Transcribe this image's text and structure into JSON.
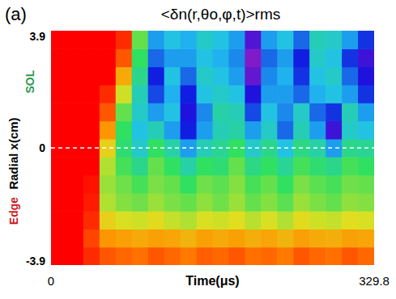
{
  "chart_data": {
    "type": "heatmap",
    "panel_label": "(a)",
    "title": "<δn(r,θo,φ,t)>rms",
    "x_label": "Time(μs)",
    "y_label": "Radial x(cm)",
    "xlim": [
      0,
      329.8
    ],
    "ylim": [
      -3.9,
      3.9
    ],
    "xticks": [
      0,
      329.8
    ],
    "yticks": [
      -3.9,
      0,
      3.9
    ],
    "separatrix": 0,
    "annotations": [
      {
        "text": "SOL",
        "color": "#2e9a4e",
        "y": 2.2
      },
      {
        "text": "Edge",
        "color": "#d01818",
        "y": -2.1
      }
    ],
    "color_range": [
      0,
      1
    ],
    "colormap": [
      "#b020c0",
      "#1010e0",
      "#20c0f0",
      "#30e060",
      "#e0e020",
      "#ff9000",
      "#ff0000"
    ],
    "x_bins": [
      0,
      16.49,
      32.98,
      49.47,
      65.96,
      82.45,
      98.94,
      115.43,
      131.92,
      148.41,
      164.9,
      181.39,
      197.88,
      214.37,
      230.86,
      247.35,
      263.84,
      280.33,
      296.82,
      313.31,
      329.8
    ],
    "y_bins": [
      -3.9,
      -3.3,
      -2.7,
      -2.1,
      -1.5,
      -0.9,
      -0.3,
      0.3,
      0.9,
      1.5,
      2.1,
      2.7,
      3.3,
      3.9
    ],
    "cells": [
      [
        1,
        1,
        0.95,
        0.9,
        0.88,
        0.87,
        0.9,
        0.88,
        0.86,
        0.89,
        0.88,
        0.9,
        0.87,
        0.88,
        0.86,
        0.9,
        0.88,
        0.87,
        0.9,
        0.88
      ],
      [
        1,
        1,
        0.92,
        0.82,
        0.8,
        0.78,
        0.8,
        0.79,
        0.76,
        0.8,
        0.78,
        0.8,
        0.77,
        0.79,
        0.76,
        0.8,
        0.78,
        0.77,
        0.8,
        0.79
      ],
      [
        1,
        1,
        0.95,
        0.7,
        0.66,
        0.65,
        0.68,
        0.64,
        0.62,
        0.66,
        0.65,
        0.67,
        0.63,
        0.66,
        0.62,
        0.68,
        0.65,
        0.64,
        0.67,
        0.66
      ],
      [
        1,
        1,
        0.97,
        0.62,
        0.58,
        0.56,
        0.6,
        0.57,
        0.55,
        0.59,
        0.56,
        0.6,
        0.55,
        0.58,
        0.54,
        0.6,
        0.57,
        0.55,
        0.59,
        0.58
      ],
      [
        1,
        1,
        0.98,
        0.6,
        0.56,
        0.52,
        0.57,
        0.55,
        0.5,
        0.56,
        0.54,
        0.58,
        0.52,
        0.55,
        0.5,
        0.57,
        0.54,
        0.52,
        0.56,
        0.55
      ],
      [
        1,
        1,
        1,
        0.62,
        0.52,
        0.45,
        0.55,
        0.5,
        0.42,
        0.5,
        0.48,
        0.55,
        0.46,
        0.5,
        0.44,
        0.52,
        0.48,
        0.45,
        0.52,
        0.5
      ],
      [
        1,
        1,
        1,
        0.7,
        0.48,
        0.38,
        0.5,
        0.42,
        0.3,
        0.4,
        0.44,
        0.5,
        0.38,
        0.45,
        0.35,
        0.46,
        0.42,
        0.3,
        0.45,
        0.44
      ],
      [
        1,
        1,
        1,
        0.82,
        0.5,
        0.35,
        0.4,
        0.3,
        0.18,
        0.3,
        0.4,
        0.42,
        0.3,
        0.38,
        0.25,
        0.4,
        0.3,
        0.12,
        0.38,
        0.35
      ],
      [
        1,
        1,
        1,
        0.9,
        0.55,
        0.38,
        0.3,
        0.35,
        0.15,
        0.28,
        0.42,
        0.4,
        0.22,
        0.35,
        0.28,
        0.38,
        0.25,
        0.2,
        0.4,
        0.3
      ],
      [
        1,
        1,
        1,
        0.95,
        0.65,
        0.4,
        0.22,
        0.32,
        0.18,
        0.35,
        0.38,
        0.35,
        0.15,
        0.3,
        0.3,
        0.25,
        0.32,
        0.35,
        0.3,
        0.2
      ],
      [
        1,
        1,
        1,
        1,
        0.78,
        0.45,
        0.18,
        0.35,
        0.25,
        0.38,
        0.35,
        0.3,
        0.08,
        0.28,
        0.32,
        0.2,
        0.35,
        0.38,
        0.25,
        0.15
      ],
      [
        1,
        1,
        1,
        1,
        0.9,
        0.5,
        0.25,
        0.3,
        0.3,
        0.35,
        0.32,
        0.28,
        0.05,
        0.25,
        0.3,
        0.18,
        0.38,
        0.35,
        0.2,
        0.12
      ],
      [
        1,
        1,
        1,
        1,
        0.95,
        0.55,
        0.3,
        0.35,
        0.32,
        0.38,
        0.35,
        0.3,
        0.1,
        0.3,
        0.35,
        0.25,
        0.4,
        0.38,
        0.3,
        0.2
      ]
    ]
  }
}
